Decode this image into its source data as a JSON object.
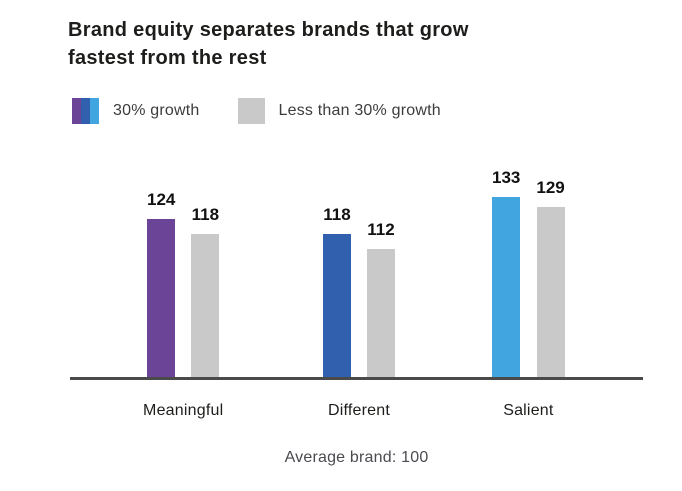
{
  "chart_data": {
    "type": "bar",
    "title": "Brand equity separates brands that grow fastest from the rest",
    "title_lines": [
      "Brand equity separates brands that grow",
      "fastest from the rest"
    ],
    "categories": [
      "Meaningful",
      "Different",
      "Salient"
    ],
    "series": [
      {
        "name": "30% growth",
        "values": [
          124,
          118,
          133
        ],
        "colors": [
          "#6B4397",
          "#3060AE",
          "#41A5E0"
        ]
      },
      {
        "name": "Less than 30% growth",
        "values": [
          118,
          112,
          129
        ],
        "colors": [
          "#C9C9C9",
          "#C9C9C9",
          "#C9C9C9"
        ]
      }
    ],
    "legend": {
      "position": "top-left",
      "items": [
        {
          "label": "30% growth",
          "swatch_colors": [
            "#6B4397",
            "#3060AE",
            "#41A5E0"
          ]
        },
        {
          "label": "Less than 30% growth",
          "swatch_colors": [
            "#C9C9C9"
          ]
        }
      ]
    },
    "note": "Average brand: 100",
    "value_labels": true,
    "grid": false,
    "ylim": [
      60,
      140
    ],
    "axis_baseline_implied_value": 60
  },
  "colors": {
    "title_text": "#1D1D1B",
    "legend_text": "#3C3C3C",
    "value_label_text": "#111111",
    "category_text": "#1D1D1B",
    "note_text": "#4A4A50",
    "axis_line": "#4A4A4A",
    "background": "#FFFFFF"
  }
}
